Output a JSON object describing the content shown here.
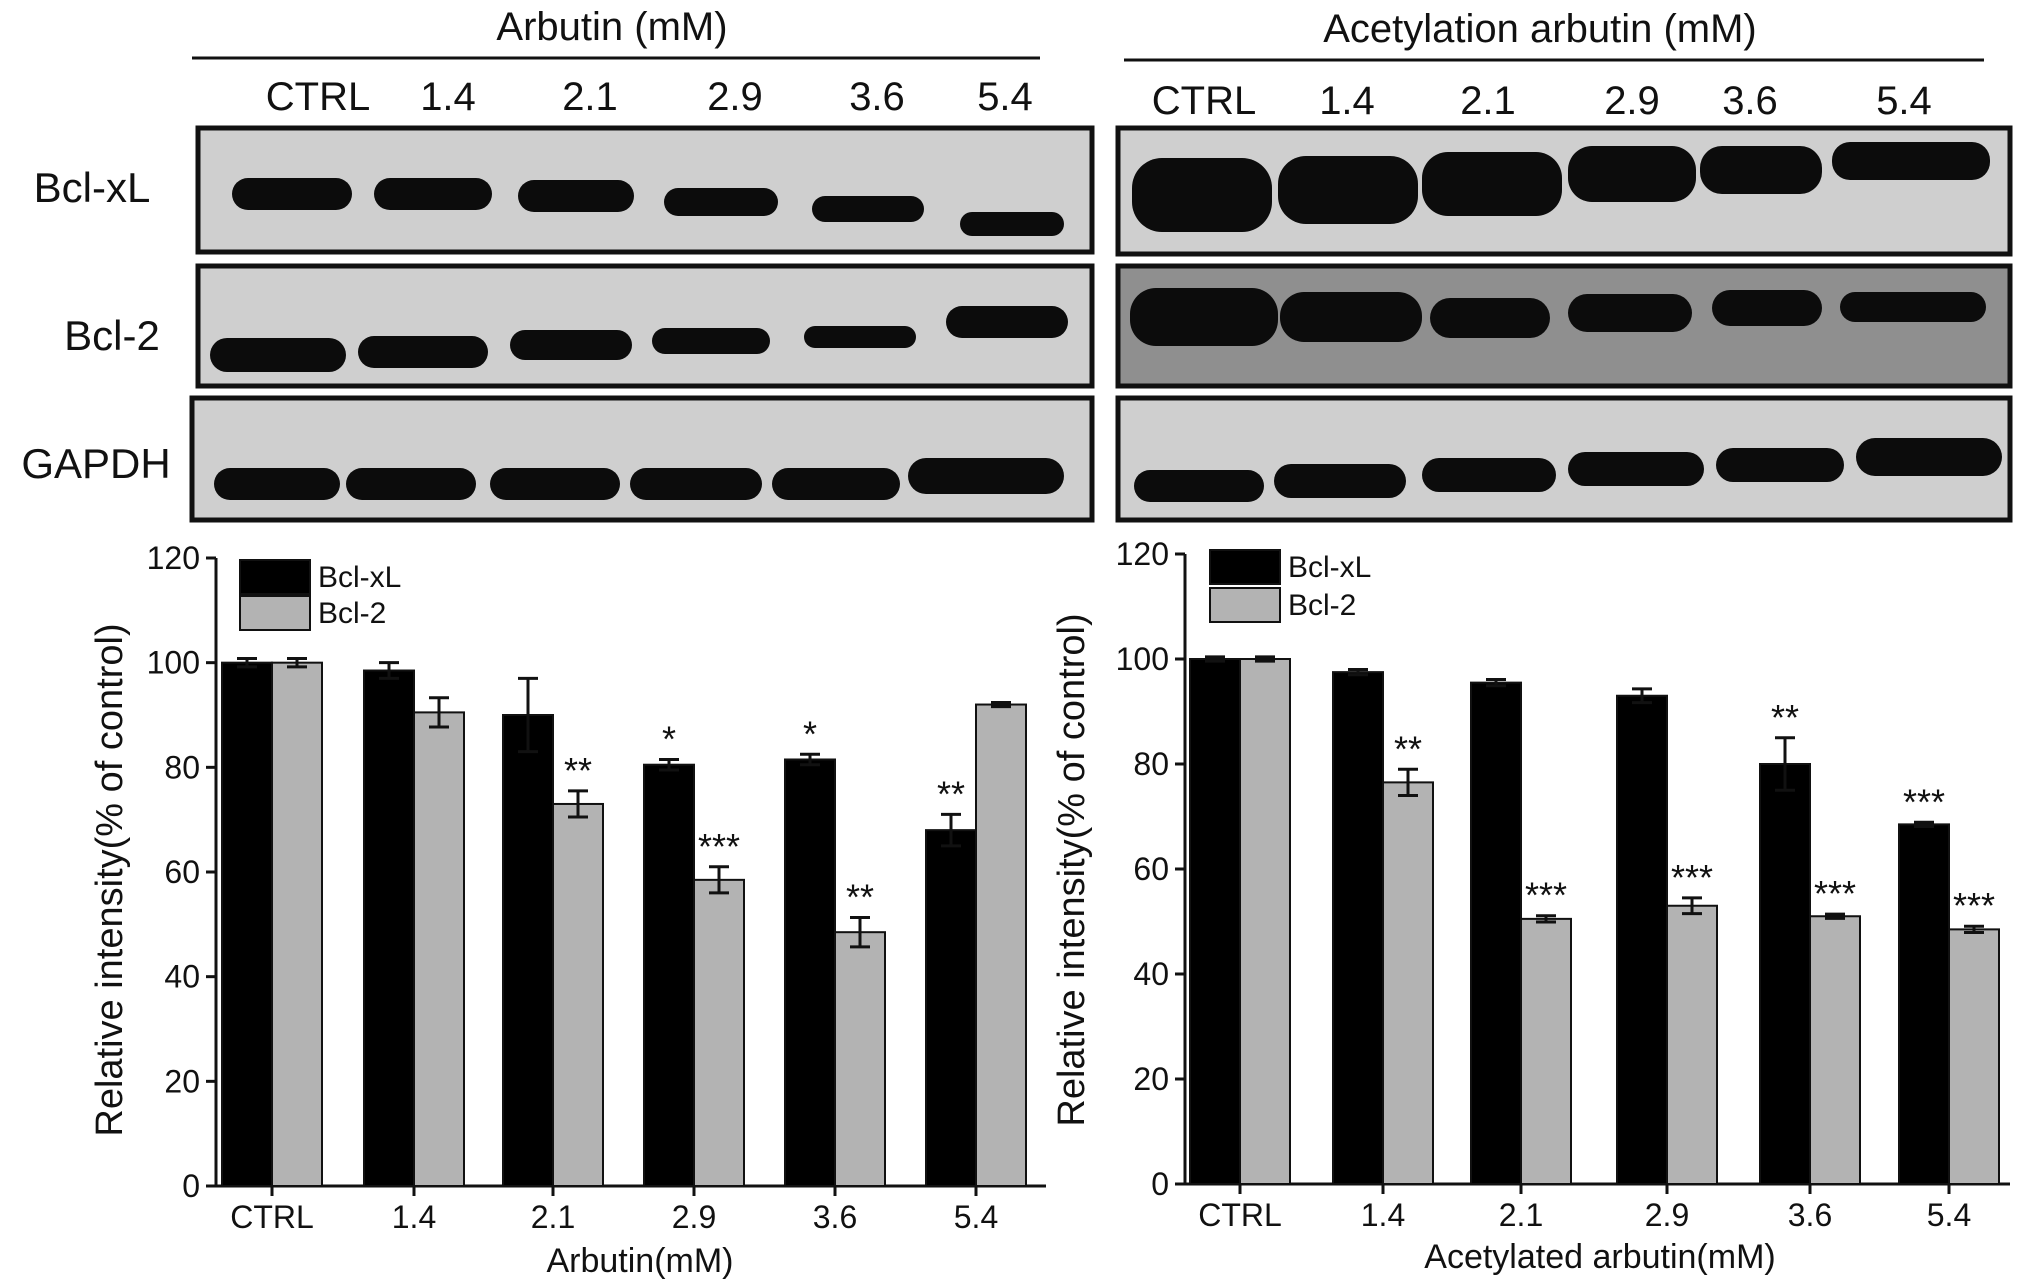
{
  "blots": [
    {
      "header": "Arbutin (mM)",
      "lanes": [
        "CTRL",
        "1.4",
        "2.1",
        "2.9",
        "3.6",
        "5.4"
      ],
      "rows": [
        "Bcl-xL",
        "Bcl-2",
        "GAPDH"
      ]
    },
    {
      "header": "Acetylation arbutin (mM)",
      "lanes": [
        "CTRL",
        "1.4",
        "2.1",
        "2.9",
        "3.6",
        "5.4"
      ],
      "rows": []
    }
  ],
  "colors": {
    "bcl_xl": "#000000",
    "bcl_2": "#b3b3b3"
  },
  "chart_data": [
    {
      "type": "bar",
      "title": "",
      "xlabel": "Arbutin(mM)",
      "ylabel": "Relative intensity(% of control)",
      "ylim": [
        0,
        120
      ],
      "yticks": [
        "0",
        "20",
        "40",
        "60",
        "80",
        "100",
        "120"
      ],
      "categories": [
        "CTRL",
        "1.4",
        "2.1",
        "2.9",
        "3.6",
        "5.4"
      ],
      "legend": "top-left",
      "series": [
        {
          "name": "Bcl-xL",
          "values": [
            100,
            98.5,
            90,
            80.5,
            81.5,
            68
          ],
          "errors": [
            0.8,
            1.5,
            7,
            1,
            1,
            3
          ],
          "labels": [
            "",
            "",
            "",
            "*",
            "*",
            "**"
          ]
        },
        {
          "name": "Bcl-2",
          "values": [
            100,
            90.5,
            73,
            58.5,
            48.5,
            92
          ],
          "errors": [
            0.8,
            2.8,
            2.5,
            2.5,
            2.8,
            0.4
          ],
          "labels": [
            "",
            "",
            "**",
            "***",
            "**",
            ""
          ]
        }
      ]
    },
    {
      "type": "bar",
      "title": "",
      "xlabel": "Acetylated arbutin(mM)",
      "ylabel": "Relative intensity(% of control)",
      "ylim": [
        0,
        120
      ],
      "yticks": [
        "0",
        "20",
        "40",
        "60",
        "80",
        "100",
        "120"
      ],
      "categories": [
        "CTRL",
        "1.4",
        "2.1",
        "2.9",
        "3.6",
        "5.4"
      ],
      "legend": "top-left",
      "series": [
        {
          "name": "Bcl-xL",
          "values": [
            100,
            97.5,
            95.5,
            93,
            80,
            68.5
          ],
          "errors": [
            0.4,
            0.5,
            0.6,
            1.3,
            5,
            0.4
          ],
          "labels": [
            "",
            "",
            "",
            "",
            "**",
            "***"
          ]
        },
        {
          "name": "Bcl-2",
          "values": [
            100,
            76.5,
            50.5,
            53,
            51,
            48.5
          ],
          "errors": [
            0.4,
            2.5,
            0.6,
            1.5,
            0.4,
            0.6
          ],
          "labels": [
            "",
            "**",
            "***",
            "***",
            "***",
            "***"
          ]
        }
      ]
    }
  ]
}
